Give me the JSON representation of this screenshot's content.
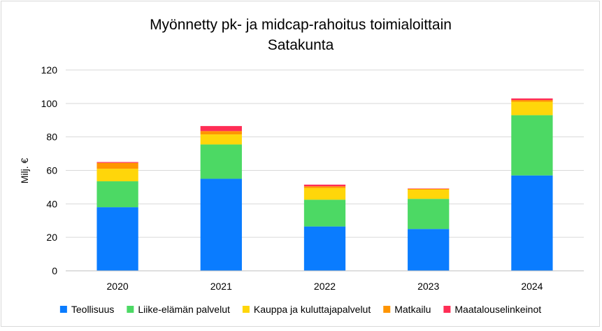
{
  "chart_data": {
    "type": "stacked-bar",
    "title": "Myönnetty pk- ja midcap-rahoitus toimialoittain",
    "subtitle": "Satakunta",
    "xlabel": "",
    "ylabel": "Milj. €",
    "ylim": [
      0,
      120
    ],
    "yticks": [
      0,
      20,
      40,
      60,
      80,
      100,
      120
    ],
    "grid": true,
    "legend_position": "bottom",
    "categories": [
      "2020",
      "2021",
      "2022",
      "2023",
      "2024"
    ],
    "series": [
      {
        "name": "Teollisuus",
        "color": "#0a7cff",
        "values": [
          38,
          55,
          26.5,
          25,
          57
        ]
      },
      {
        "name": "Liike-elämän palvelut",
        "color": "#4cd964",
        "values": [
          15.5,
          20.5,
          16,
          18,
          36
        ]
      },
      {
        "name": "Kauppa ja kuluttajapalvelut",
        "color": "#ffd60a",
        "values": [
          7.5,
          6,
          7,
          5.5,
          8
        ]
      },
      {
        "name": "Matkailu",
        "color": "#ff9500",
        "values": [
          3.5,
          2,
          1,
          0.5,
          1
        ]
      },
      {
        "name": "Maatalouselinkeinot",
        "color": "#ff2d55",
        "values": [
          0.5,
          3,
          1,
          0.2,
          1
        ]
      }
    ]
  }
}
